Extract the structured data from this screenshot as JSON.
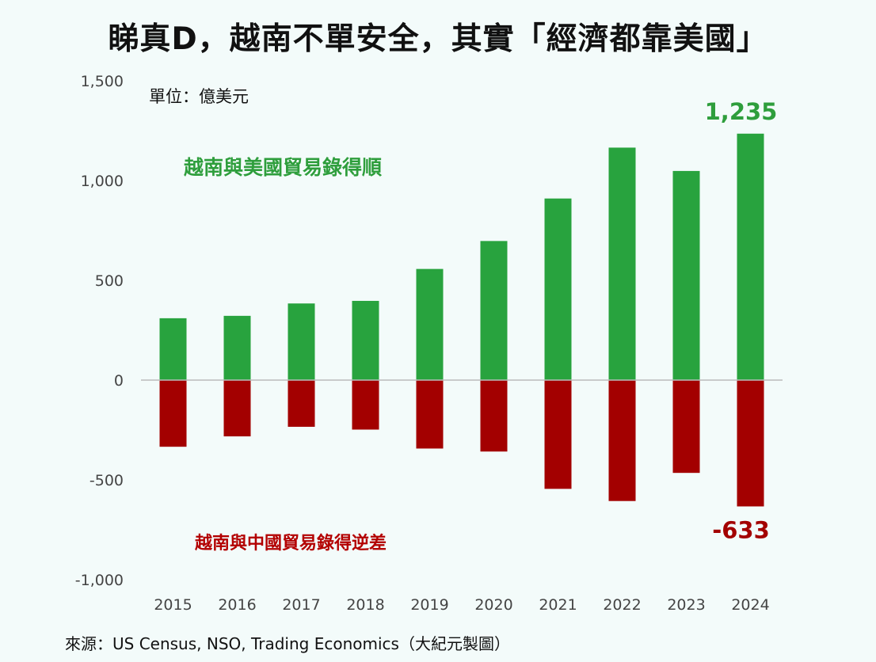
{
  "title": "睇真D，越南不單安全，其實「經濟都靠美國」",
  "unit_label": "單位：億美元",
  "source": "來源：US Census, NSO, Trading Economics（大紀元製圖）",
  "chart_data": {
    "type": "bar",
    "categories": [
      "2015",
      "2016",
      "2017",
      "2018",
      "2019",
      "2020",
      "2021",
      "2022",
      "2023",
      "2024"
    ],
    "series": [
      {
        "name": "越南與美國貿易錄得順",
        "color": "#28a33e",
        "values": [
          310,
          322,
          384,
          397,
          557,
          697,
          910,
          1165,
          1048,
          1235
        ]
      },
      {
        "name": "越南與中國貿易錄得逆差",
        "color": "#a30000",
        "values": [
          -334,
          -282,
          -234,
          -248,
          -343,
          -358,
          -545,
          -606,
          -465,
          -633
        ]
      }
    ],
    "ylim": [
      -1000,
      1500
    ],
    "yticks": [
      1500,
      1000,
      500,
      0,
      -500,
      -1000
    ],
    "ytick_labels": [
      "1,500",
      "1,000",
      "500",
      "0",
      "-500",
      "-1,000"
    ],
    "data_labels": [
      {
        "text": "1,235",
        "color": "#2e9e3c"
      },
      {
        "text": "-633",
        "color": "#a30000"
      }
    ],
    "grid": false,
    "legend": "none"
  }
}
